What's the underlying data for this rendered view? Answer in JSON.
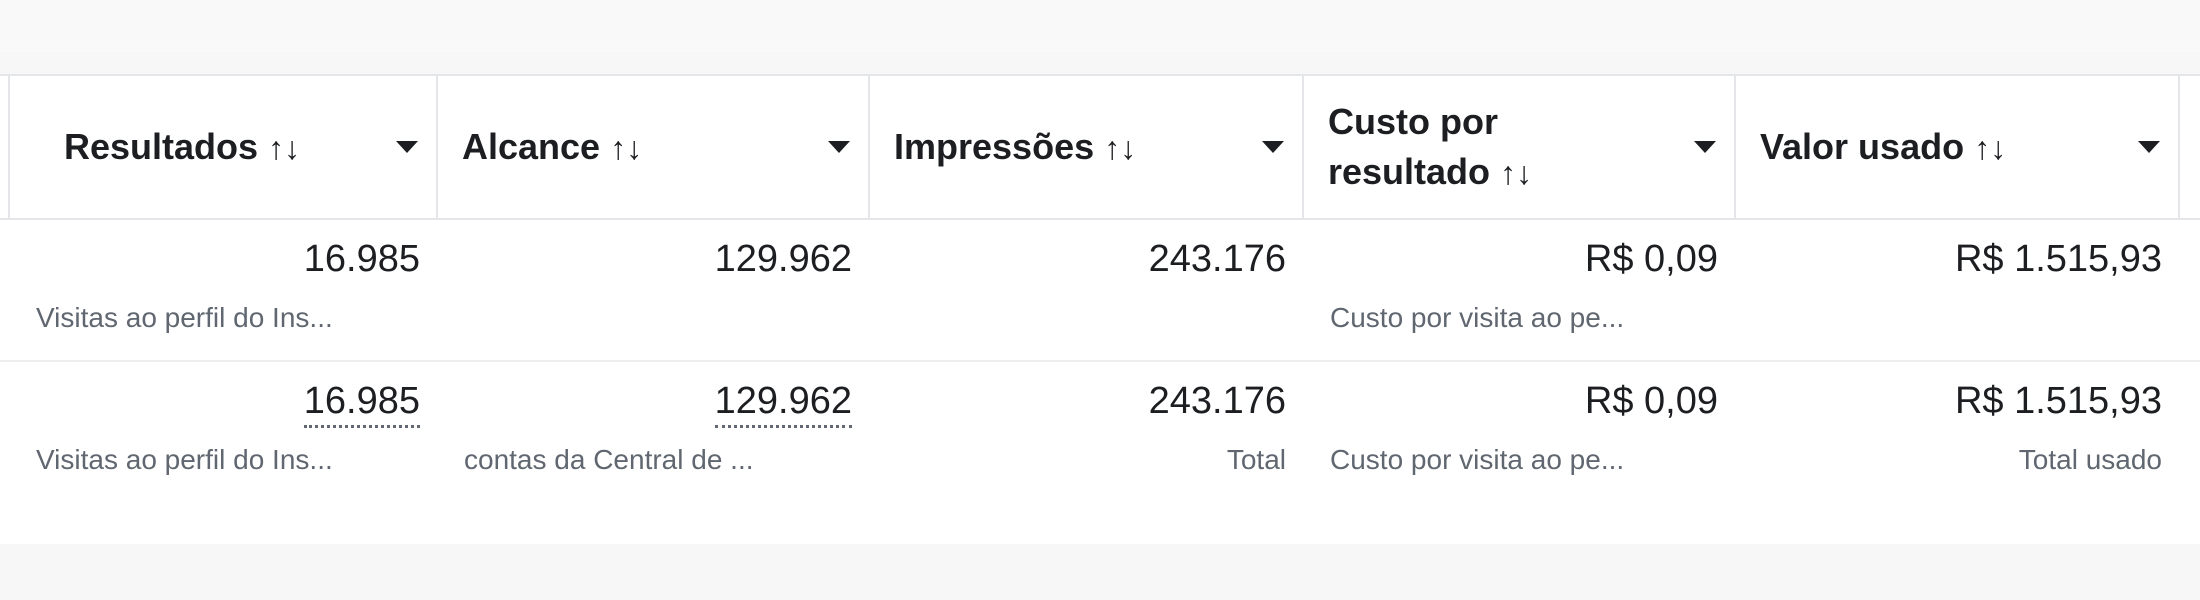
{
  "columns": [
    {
      "label_line1": "Resultados",
      "label_line2": ""
    },
    {
      "label_line1": "Alcance",
      "label_line2": ""
    },
    {
      "label_line1": "Impressões",
      "label_line2": ""
    },
    {
      "label_line1": "Custo por",
      "label_line2": "resultado"
    },
    {
      "label_line1": "Valor usado",
      "label_line2": ""
    }
  ],
  "icons": {
    "sort": "sort-arrows-icon",
    "dropdown": "caret-down-icon"
  },
  "sort_glyph": "↑↓",
  "rows": [
    {
      "cells": [
        {
          "value": "16.985",
          "sub": "Visitas ao perfil do Ins..."
        },
        {
          "value": "129.962",
          "sub": ""
        },
        {
          "value": "243.176",
          "sub": ""
        },
        {
          "value": "R$ 0,09",
          "sub": "Custo por visita ao pe..."
        },
        {
          "value": "R$ 1.515,93",
          "sub": ""
        }
      ]
    },
    {
      "cells": [
        {
          "value": "16.985",
          "sub": "Visitas ao perfil do Ins..."
        },
        {
          "value": "129.962",
          "sub": "contas da Central de ..."
        },
        {
          "value": "243.176",
          "sub": "Total"
        },
        {
          "value": "R$ 0,09",
          "sub": "Custo por visita ao pe..."
        },
        {
          "value": "R$ 1.515,93",
          "sub": "Total usado"
        }
      ]
    }
  ]
}
